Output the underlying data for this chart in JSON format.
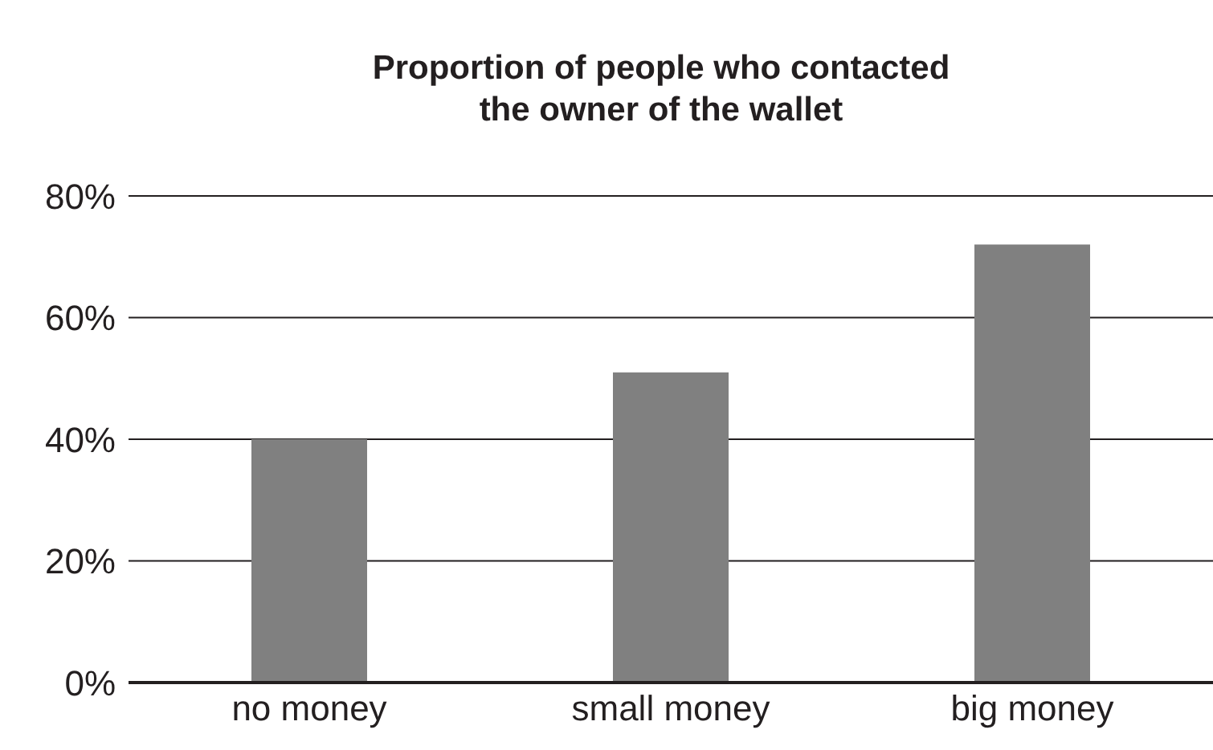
{
  "chart_data": {
    "type": "bar",
    "title": "Proportion of people who contacted\nthe owner of the wallet",
    "categories": [
      "no money",
      "small money",
      "big money"
    ],
    "values": [
      40,
      51,
      72
    ],
    "color": "#808080",
    "ylim": [
      0,
      80
    ],
    "yticks": [
      {
        "value": 0,
        "label": "0%"
      },
      {
        "value": 20,
        "label": "20%"
      },
      {
        "value": 40,
        "label": "40%"
      },
      {
        "value": 60,
        "label": "60%"
      },
      {
        "value": 80,
        "label": "80%"
      }
    ],
    "grid": "y"
  }
}
